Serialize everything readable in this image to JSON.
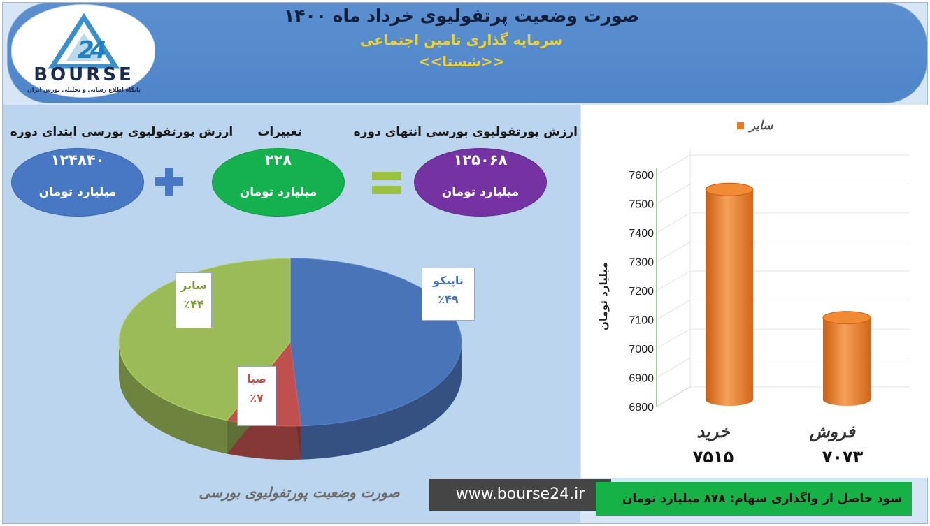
{
  "header": {
    "title": "صورت وضعیت پرتفولیوی خرداد ماه ۱۴۰۰",
    "subtitle": "سرمایه گذاری تامین اجتماعی",
    "symbol": "<<شستا>>"
  },
  "logo": {
    "name": "BOURSE",
    "tagline": "پایگاه اطلاع رسانی و تحلیلی بورس ایران"
  },
  "summary": {
    "start_label": "ارزش پورتفولیوی بورسی ابتدای دوره",
    "start_value": "۱۲۴۸۴۰",
    "change_label": "تغییرات",
    "change_value": "۲۲۸",
    "end_label": "ارزش پورتفولیوی بورسی انتهای دوره",
    "end_value": "۱۲۵۰۶۸",
    "unit": "میلیارد تومان",
    "colors": {
      "start": "#4878c4",
      "change": "#14b14e",
      "end": "#7432a2"
    }
  },
  "pie": {
    "slices": [
      {
        "name": "تاپیکو",
        "pct_label": "٪۴۹",
        "value": 49,
        "color": "#4a74b8"
      },
      {
        "name": "صبا",
        "pct_label": "٪۷",
        "value": 7,
        "color": "#c0504d"
      },
      {
        "name": "سایر",
        "pct_label": "٪۴۴",
        "value": 44,
        "color": "#9bbb59"
      }
    ]
  },
  "chart_data": {
    "type": "bar",
    "legend": "سایر",
    "legend_position": "top",
    "categories": [
      "خرید",
      "فروش"
    ],
    "value_labels": [
      "۷۵۱۵",
      "۷۰۷۳"
    ],
    "values": [
      7515,
      7073
    ],
    "ylabel": "میلیارد تومان",
    "ylim": [
      6800,
      7600
    ],
    "yticks": [
      6800,
      6900,
      7000,
      7100,
      7200,
      7300,
      7400,
      7500,
      7600
    ],
    "color": "#ef7a1c"
  },
  "footer": {
    "caption": "صورت وضعیت پورتفولیوی بورسی",
    "url": "www.bourse24.ir",
    "profit": "سود حاصل از واگذاری سهام: ۸۷۸ میلیارد تومان"
  }
}
